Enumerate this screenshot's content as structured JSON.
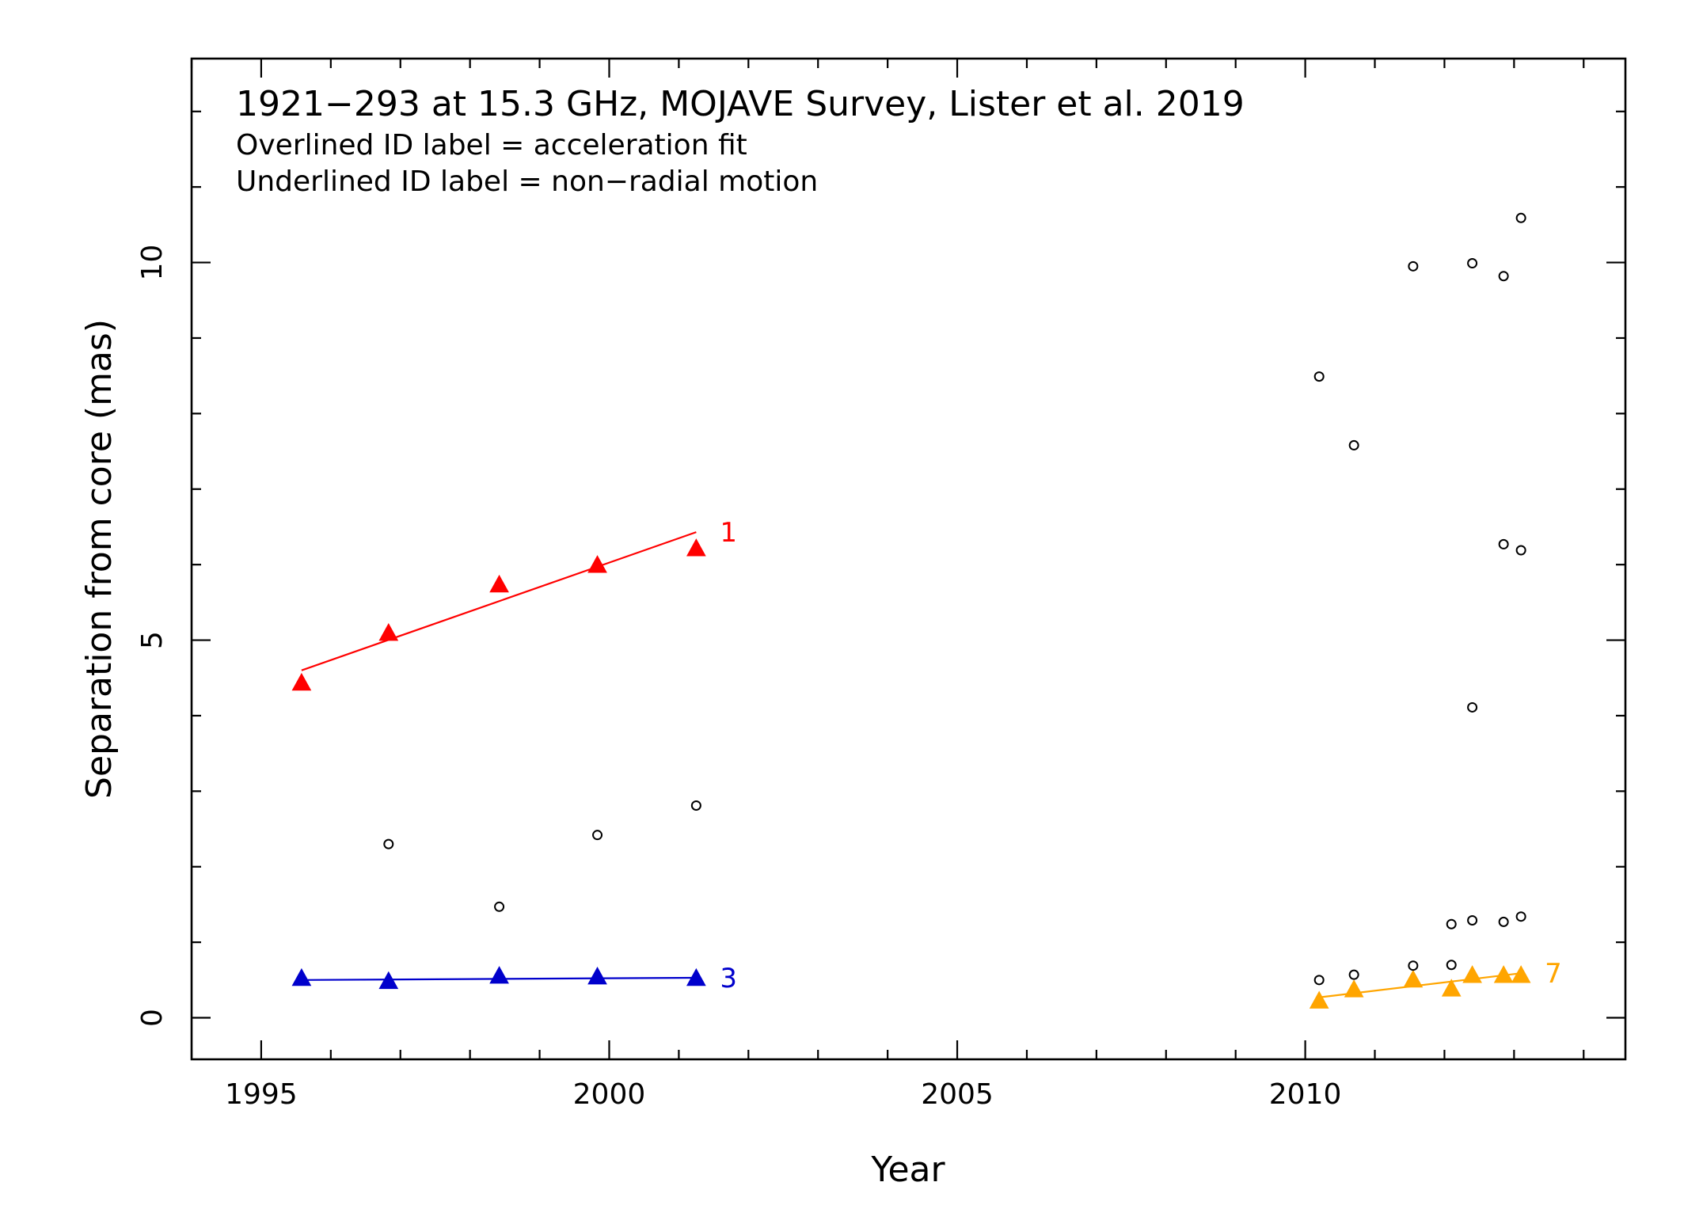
{
  "chart_data": {
    "type": "scatter",
    "title": "1921−293 at 15.3 GHz, MOJAVE Survey, Lister et al. 2019",
    "annotations": [
      "Overlined ID label = acceleration fit",
      "Underlined ID label = non−radial motion"
    ],
    "xlabel": "Year",
    "ylabel": "Separation from core (mas)",
    "xlim": [
      1994.0,
      2014.6
    ],
    "ylim": [
      -0.55,
      12.7
    ],
    "x_ticks": [
      {
        "value": 1995,
        "label": "1995"
      },
      {
        "value": 2000,
        "label": "2000"
      },
      {
        "value": 2005,
        "label": "2005"
      },
      {
        "value": 2010,
        "label": "2010"
      }
    ],
    "y_ticks": [
      {
        "value": 0,
        "label": "0"
      },
      {
        "value": 5,
        "label": "5"
      },
      {
        "value": 10,
        "label": "10"
      }
    ],
    "x_minor_step": 1,
    "y_minor_step": 1,
    "series": [
      {
        "name": "1",
        "color": "#ff0000",
        "marker": "triangle",
        "points": [
          [
            1995.58,
            4.43
          ],
          [
            1996.83,
            5.09
          ],
          [
            1998.42,
            5.73
          ],
          [
            1999.83,
            5.99
          ],
          [
            2001.25,
            6.21
          ]
        ],
        "fit": [
          [
            1995.58,
            4.6
          ],
          [
            2001.25,
            6.43
          ]
        ]
      },
      {
        "name": "3",
        "color": "#0000cc",
        "marker": "triangle",
        "points": [
          [
            1995.58,
            0.52
          ],
          [
            1996.83,
            0.48
          ],
          [
            1998.42,
            0.55
          ],
          [
            1999.83,
            0.54
          ],
          [
            2001.25,
            0.52
          ]
        ],
        "fit": [
          [
            1995.58,
            0.5
          ],
          [
            2001.25,
            0.53
          ]
        ]
      },
      {
        "name": "7",
        "color": "#ffa500",
        "marker": "triangle",
        "points": [
          [
            2010.2,
            0.22
          ],
          [
            2010.7,
            0.37
          ],
          [
            2011.55,
            0.5
          ],
          [
            2012.1,
            0.38
          ],
          [
            2012.4,
            0.56
          ],
          [
            2012.85,
            0.56
          ],
          [
            2013.1,
            0.56
          ]
        ],
        "fit": [
          [
            2010.2,
            0.27
          ],
          [
            2013.1,
            0.59
          ]
        ]
      },
      {
        "color": "#000000",
        "marker": "open-circle",
        "points": [
          [
            1996.83,
            2.3
          ],
          [
            1998.42,
            1.47
          ],
          [
            1999.83,
            2.42
          ],
          [
            2001.25,
            2.81
          ],
          [
            2010.2,
            0.5
          ],
          [
            2010.7,
            0.57
          ],
          [
            2011.55,
            0.69
          ],
          [
            2012.1,
            1.24
          ],
          [
            2012.1,
            0.7
          ],
          [
            2012.4,
            1.29
          ],
          [
            2012.85,
            1.27
          ],
          [
            2013.1,
            1.34
          ],
          [
            2010.2,
            8.49
          ],
          [
            2010.7,
            7.58
          ],
          [
            2011.55,
            9.95
          ],
          [
            2012.4,
            9.99
          ],
          [
            2012.85,
            9.82
          ],
          [
            2013.1,
            10.59
          ],
          [
            2012.85,
            6.27
          ],
          [
            2013.1,
            6.19
          ],
          [
            2012.4,
            4.11
          ]
        ]
      }
    ],
    "grid": false,
    "legend": "none"
  }
}
